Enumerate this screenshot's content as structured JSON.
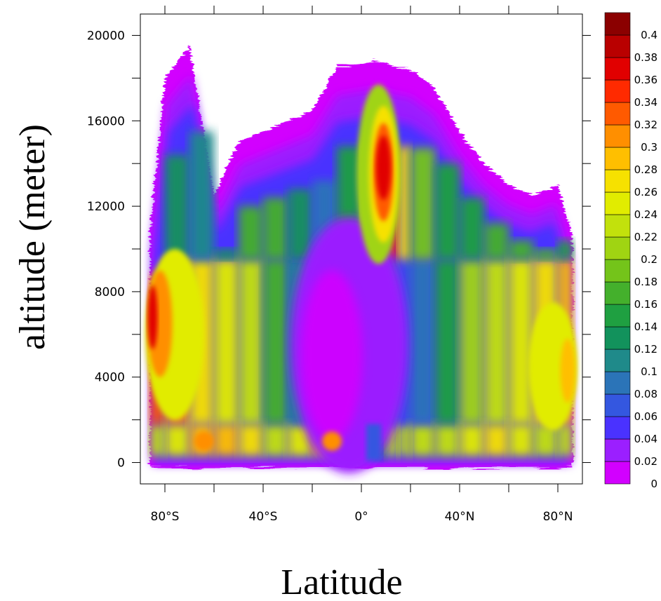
{
  "chart_data": {
    "type": "heatmap",
    "title": "",
    "xlabel": "Latitude",
    "ylabel": "altitude (meter)",
    "xlim": [
      -90,
      90
    ],
    "ylim": [
      -1000,
      21000
    ],
    "x_ticks": [
      {
        "value": -80,
        "label": "80°S"
      },
      {
        "value": -40,
        "label": "40°S"
      },
      {
        "value": 0,
        "label": "0°"
      },
      {
        "value": 40,
        "label": "40°N"
      },
      {
        "value": 80,
        "label": "80°N"
      }
    ],
    "x_minor_ticks": [
      -60,
      -20,
      20,
      60
    ],
    "y_ticks": [
      {
        "value": 0,
        "label": "0"
      },
      {
        "value": 4000,
        "label": "4000"
      },
      {
        "value": 8000,
        "label": "8000"
      },
      {
        "value": 12000,
        "label": "12000"
      },
      {
        "value": 16000,
        "label": "16000"
      },
      {
        "value": 20000,
        "label": "20000"
      }
    ],
    "y_minor_ticks": [
      2000,
      6000,
      10000,
      14000,
      18000
    ],
    "colorbar": {
      "levels": [
        "0",
        "0.02",
        "0.04",
        "0.06",
        "0.08",
        "0.1",
        "0.12",
        "0.14",
        "0.16",
        "0.18",
        "0.2",
        "0.22",
        "0.24",
        "0.26",
        "0.28",
        "0.3",
        "0.32",
        "0.34",
        "0.36",
        "0.38",
        "0.4"
      ],
      "colors": [
        "#d200ff",
        "#9b1fff",
        "#4a32ff",
        "#3457e0",
        "#2b74b8",
        "#1f8a8a",
        "#12925c",
        "#1fa041",
        "#44b02c",
        "#74c41a",
        "#a0d412",
        "#c2e10c",
        "#e1ec00",
        "#f6e100",
        "#ffbf00",
        "#ff8f00",
        "#ff5a00",
        "#ff2a00",
        "#e10000",
        "#b90000",
        "#8b0000"
      ]
    },
    "sampled_grid": {
      "note_on_units": "latitude in degrees (negative = S), altitude in meters, values are field magnitude",
      "latitudes": [
        -86,
        -80,
        -70,
        -60,
        -50,
        -40,
        -30,
        -20,
        -10,
        0,
        5,
        10,
        15,
        20,
        30,
        40,
        50,
        60,
        70,
        80,
        86
      ],
      "top_of_data_m": [
        11000,
        18000,
        19500,
        12500,
        15000,
        15500,
        16000,
        16500,
        18500,
        18700,
        18800,
        18700,
        18500,
        18400,
        17500,
        15500,
        14000,
        13000,
        12500,
        13000,
        10500
      ],
      "low_level_max_value": [
        0.24,
        0.22,
        0.26,
        0.3,
        0.26,
        0.24,
        0.22,
        0.26,
        0.3,
        0.12,
        0.06,
        0.2,
        0.22,
        0.22,
        0.22,
        0.24,
        0.24,
        0.26,
        0.22,
        0.22,
        0.24
      ],
      "mid_level_max_value": [
        0.36,
        0.3,
        0.28,
        0.24,
        0.24,
        0.22,
        0.12,
        0.06,
        0.04,
        0.04,
        0.06,
        0.1,
        0.06,
        0.06,
        0.08,
        0.18,
        0.22,
        0.24,
        0.24,
        0.26,
        0.28
      ],
      "upper_max_value": [
        0.14,
        0.12,
        0.1,
        0.08,
        0.14,
        0.16,
        0.18,
        0.06,
        0.08,
        0.18,
        0.3,
        0.38,
        0.3,
        0.2,
        0.14,
        0.12,
        0.14,
        0.16,
        0.16,
        0.14,
        0.12
      ]
    }
  }
}
